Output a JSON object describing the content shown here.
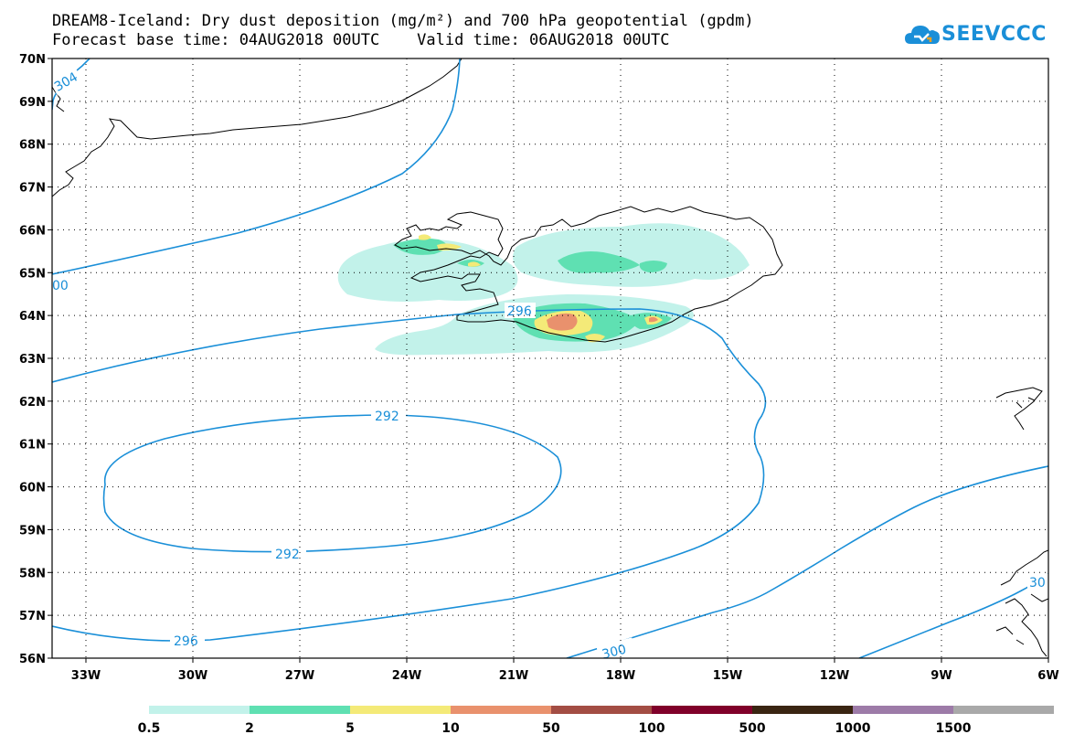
{
  "title_line1": "DREAM8-Iceland: Dry dust deposition (mg/m²) and 700 hPa geopotential (gpdm)",
  "title_line2": "Forecast base time: 04AUG2018 00UTC    Valid time: 06AUG2018 00UTC",
  "logo_text": "SEEVCCC",
  "lat_labels": [
    "70N",
    "69N",
    "68N",
    "67N",
    "66N",
    "65N",
    "64N",
    "63N",
    "62N",
    "61N",
    "60N",
    "59N",
    "58N",
    "57N",
    "56N"
  ],
  "lon_labels": [
    "33W",
    "30W",
    "27W",
    "24W",
    "21W",
    "18W",
    "15W",
    "12W",
    "9W",
    "6W"
  ],
  "contour_labels": {
    "c304": "304",
    "c300a": "00",
    "c296a": "296",
    "c292a": "292",
    "c292b": "292",
    "c296b": "296",
    "c300b": "300",
    "c30": "30"
  },
  "colorbar": {
    "labels": [
      "0.5",
      "2",
      "5",
      "10",
      "50",
      "100",
      "500",
      "1000",
      "1500"
    ],
    "colors": [
      "#c2f2ea",
      "#5fe0b2",
      "#f4ea78",
      "#e9916d",
      "#a34d44",
      "#80002a",
      "#3a2512",
      "#9d7ba8",
      "#a9a9a9"
    ]
  },
  "contour_color": "#1a8fd8"
}
